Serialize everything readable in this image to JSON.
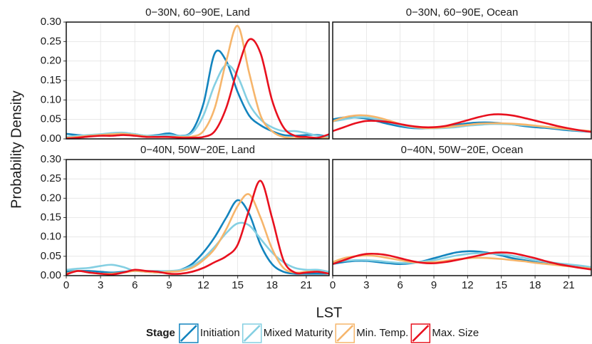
{
  "chart_data": [
    {
      "type": "line",
      "title": "0−30N, 60−90E, Land",
      "grid": true,
      "x": [
        0,
        1,
        2,
        3,
        4,
        5,
        6,
        7,
        8,
        9,
        10,
        11,
        12,
        13,
        14,
        15,
        16,
        17,
        18,
        19,
        20,
        21,
        22,
        23
      ],
      "xlim": [
        0,
        23
      ],
      "xticks": [
        0,
        3,
        6,
        9,
        12,
        15,
        18,
        21
      ],
      "ylim": [
        0,
        0.3
      ],
      "yticks": [
        {
          "value": 0,
          "label": "0.00"
        },
        {
          "value": 0.05,
          "label": "0.05"
        },
        {
          "value": 0.1,
          "label": "0.10"
        },
        {
          "value": 0.15,
          "label": "0.15"
        },
        {
          "value": 0.2,
          "label": "0.20"
        },
        {
          "value": 0.25,
          "label": "0.25"
        },
        {
          "value": 0.3,
          "label": "0.30"
        }
      ],
      "series": [
        {
          "name": "Initiation",
          "color": "#1384be",
          "values": [
            0.013,
            0.01,
            0.008,
            0.01,
            0.013,
            0.015,
            0.012,
            0.008,
            0.01,
            0.014,
            0.008,
            0.02,
            0.09,
            0.22,
            0.2,
            0.12,
            0.06,
            0.035,
            0.02,
            0.01,
            0.008,
            0.01,
            0.01,
            0.005
          ]
        },
        {
          "name": "Mixed Maturity",
          "color": "#84cfe2",
          "values": [
            0.005,
            0.008,
            0.01,
            0.012,
            0.015,
            0.016,
            0.012,
            0.008,
            0.008,
            0.01,
            0.008,
            0.015,
            0.06,
            0.14,
            0.19,
            0.16,
            0.09,
            0.05,
            0.03,
            0.02,
            0.02,
            0.015,
            0.008,
            0.005
          ]
        },
        {
          "name": "Min. Temp.",
          "color": "#f6b56b",
          "values": [
            0.003,
            0.005,
            0.008,
            0.01,
            0.012,
            0.013,
            0.01,
            0.006,
            0.005,
            0.005,
            0.005,
            0.006,
            0.02,
            0.08,
            0.2,
            0.29,
            0.17,
            0.06,
            0.02,
            0.005,
            0.002,
            0.002,
            0.002,
            0.002
          ]
        },
        {
          "name": "Max. Size",
          "color": "#e8101e",
          "values": [
            0.001,
            0.003,
            0.006,
            0.008,
            0.008,
            0.01,
            0.008,
            0.005,
            0.005,
            0.005,
            0.003,
            0.003,
            0.005,
            0.02,
            0.08,
            0.18,
            0.255,
            0.22,
            0.1,
            0.03,
            0.008,
            0.005,
            0.003,
            0.012
          ]
        }
      ]
    },
    {
      "type": "line",
      "title": "0−30N, 60−90E, Ocean",
      "grid": true,
      "x": [
        0,
        1,
        2,
        3,
        4,
        5,
        6,
        7,
        8,
        9,
        10,
        11,
        12,
        13,
        14,
        15,
        16,
        17,
        18,
        19,
        20,
        21,
        22,
        23
      ],
      "xlim": [
        0,
        23
      ],
      "xticks": [
        0,
        3,
        6,
        9,
        12,
        15,
        18,
        21
      ],
      "ylim": [
        0,
        0.3
      ],
      "yticks": [
        0,
        0.05,
        0.1,
        0.15,
        0.2,
        0.25,
        0.3
      ],
      "series": [
        {
          "name": "Initiation",
          "color": "#1384be",
          "values": [
            0.05,
            0.055,
            0.055,
            0.052,
            0.045,
            0.038,
            0.032,
            0.028,
            0.027,
            0.028,
            0.032,
            0.036,
            0.04,
            0.042,
            0.042,
            0.04,
            0.037,
            0.033,
            0.03,
            0.028,
            0.025,
            0.022,
            0.02,
            0.018
          ]
        },
        {
          "name": "Mixed Maturity",
          "color": "#84cfe2",
          "values": [
            0.045,
            0.05,
            0.055,
            0.055,
            0.05,
            0.043,
            0.036,
            0.03,
            0.028,
            0.027,
            0.028,
            0.03,
            0.034,
            0.036,
            0.038,
            0.038,
            0.037,
            0.035,
            0.033,
            0.03,
            0.027,
            0.024,
            0.021,
            0.019
          ]
        },
        {
          "name": "Min. Temp.",
          "color": "#f6b56b",
          "values": [
            0.045,
            0.055,
            0.06,
            0.06,
            0.055,
            0.047,
            0.038,
            0.032,
            0.028,
            0.028,
            0.03,
            0.033,
            0.036,
            0.039,
            0.04,
            0.04,
            0.039,
            0.037,
            0.034,
            0.031,
            0.028,
            0.025,
            0.022,
            0.02
          ]
        },
        {
          "name": "Max. Size",
          "color": "#e8101e",
          "values": [
            0.02,
            0.03,
            0.04,
            0.046,
            0.046,
            0.043,
            0.038,
            0.033,
            0.03,
            0.03,
            0.033,
            0.04,
            0.048,
            0.056,
            0.062,
            0.063,
            0.06,
            0.054,
            0.047,
            0.04,
            0.033,
            0.027,
            0.022,
            0.018
          ]
        }
      ]
    },
    {
      "type": "line",
      "title": "0−40N, 50W−20E, Land",
      "grid": true,
      "x": [
        0,
        1,
        2,
        3,
        4,
        5,
        6,
        7,
        8,
        9,
        10,
        11,
        12,
        13,
        14,
        15,
        16,
        17,
        18,
        19,
        20,
        21,
        22,
        23
      ],
      "xlim": [
        0,
        23
      ],
      "xticks": [
        0,
        3,
        6,
        9,
        12,
        15,
        18,
        21
      ],
      "ylim": [
        0,
        0.3
      ],
      "yticks": [
        {
          "value": 0,
          "label": "0.00"
        },
        {
          "value": 0.05,
          "label": "0.05"
        },
        {
          "value": 0.1,
          "label": "0.10"
        },
        {
          "value": 0.15,
          "label": "0.15"
        },
        {
          "value": 0.2,
          "label": "0.20"
        },
        {
          "value": 0.25,
          "label": "0.25"
        },
        {
          "value": 0.3,
          "label": "0.30"
        }
      ],
      "series": [
        {
          "name": "Initiation",
          "color": "#1384be",
          "values": [
            0.01,
            0.012,
            0.012,
            0.01,
            0.008,
            0.01,
            0.012,
            0.01,
            0.008,
            0.01,
            0.015,
            0.03,
            0.06,
            0.1,
            0.15,
            0.195,
            0.16,
            0.08,
            0.03,
            0.01,
            0.005,
            0.005,
            0.005,
            0.005
          ]
        },
        {
          "name": "Mixed Maturity",
          "color": "#84cfe2",
          "values": [
            0.015,
            0.018,
            0.02,
            0.025,
            0.028,
            0.022,
            0.012,
            0.012,
            0.012,
            0.012,
            0.015,
            0.025,
            0.045,
            0.075,
            0.11,
            0.135,
            0.13,
            0.095,
            0.06,
            0.035,
            0.02,
            0.015,
            0.015,
            0.01
          ]
        },
        {
          "name": "Min. Temp.",
          "color": "#f6b56b",
          "values": [
            0.005,
            0.012,
            0.008,
            0.005,
            0.005,
            0.008,
            0.012,
            0.01,
            0.008,
            0.01,
            0.012,
            0.02,
            0.04,
            0.07,
            0.12,
            0.18,
            0.21,
            0.15,
            0.07,
            0.02,
            0.008,
            0.01,
            0.01,
            0.005
          ]
        },
        {
          "name": "Max. Size",
          "color": "#e8101e",
          "values": [
            0.003,
            0.012,
            0.008,
            0.005,
            0.003,
            0.008,
            0.015,
            0.012,
            0.01,
            0.005,
            0.005,
            0.01,
            0.02,
            0.035,
            0.05,
            0.08,
            0.17,
            0.245,
            0.15,
            0.04,
            0.008,
            0.008,
            0.01,
            0.005
          ]
        }
      ]
    },
    {
      "type": "line",
      "title": "0−40N, 50W−20E, Ocean",
      "grid": true,
      "x": [
        0,
        1,
        2,
        3,
        4,
        5,
        6,
        7,
        8,
        9,
        10,
        11,
        12,
        13,
        14,
        15,
        16,
        17,
        18,
        19,
        20,
        21,
        22,
        23
      ],
      "xlim": [
        0,
        23
      ],
      "xticks": [
        0,
        3,
        6,
        9,
        12,
        15,
        18,
        21
      ],
      "ylim": [
        0,
        0.3
      ],
      "yticks": [
        0,
        0.05,
        0.1,
        0.15,
        0.2,
        0.25,
        0.3
      ],
      "series": [
        {
          "name": "Initiation",
          "color": "#1384be",
          "values": [
            0.03,
            0.035,
            0.038,
            0.038,
            0.035,
            0.032,
            0.03,
            0.032,
            0.037,
            0.045,
            0.053,
            0.06,
            0.063,
            0.062,
            0.058,
            0.052,
            0.045,
            0.04,
            0.035,
            0.031,
            0.028,
            0.025,
            0.022,
            0.02
          ]
        },
        {
          "name": "Mixed Maturity",
          "color": "#84cfe2",
          "values": [
            0.035,
            0.038,
            0.04,
            0.04,
            0.038,
            0.035,
            0.033,
            0.033,
            0.036,
            0.04,
            0.046,
            0.052,
            0.056,
            0.058,
            0.057,
            0.055,
            0.051,
            0.046,
            0.04,
            0.036,
            0.032,
            0.029,
            0.026,
            0.022
          ]
        },
        {
          "name": "Min. Temp.",
          "color": "#f6b56b",
          "values": [
            0.035,
            0.045,
            0.05,
            0.052,
            0.05,
            0.045,
            0.04,
            0.035,
            0.034,
            0.035,
            0.038,
            0.042,
            0.045,
            0.046,
            0.045,
            0.043,
            0.04,
            0.037,
            0.033,
            0.03,
            0.027,
            0.024,
            0.021,
            0.018
          ]
        },
        {
          "name": "Max. Size",
          "color": "#e8101e",
          "values": [
            0.03,
            0.04,
            0.05,
            0.056,
            0.056,
            0.052,
            0.045,
            0.038,
            0.033,
            0.032,
            0.035,
            0.04,
            0.046,
            0.052,
            0.058,
            0.06,
            0.058,
            0.052,
            0.045,
            0.037,
            0.03,
            0.025,
            0.02,
            0.016
          ]
        }
      ]
    }
  ],
  "xlabel": "LST",
  "ylabel": "Probability Density",
  "legend": {
    "title": "Stage",
    "position": "bottom"
  }
}
